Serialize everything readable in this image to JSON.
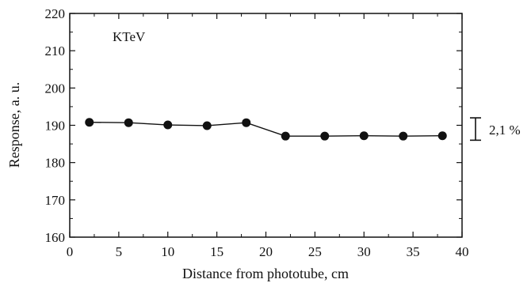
{
  "chart_data": {
    "type": "line",
    "title": "",
    "xlabel": "Distance from phototube, cm",
    "ylabel": "Response, a. u.",
    "xlim": [
      0,
      40
    ],
    "ylim": [
      160,
      220
    ],
    "x_ticks": [
      0,
      5,
      10,
      15,
      20,
      25,
      30,
      35,
      40
    ],
    "y_ticks": [
      160,
      170,
      180,
      190,
      200,
      210,
      220
    ],
    "x_tick_labels": [
      "0",
      "5",
      "10",
      "15",
      "20",
      "25",
      "30",
      "35",
      "40"
    ],
    "y_tick_labels": [
      "160",
      "170",
      "180",
      "190",
      "200",
      "210",
      "220"
    ],
    "grid": false,
    "legend": "none",
    "series": [
      {
        "x": [
          2,
          6,
          10,
          14,
          18,
          22,
          26,
          30,
          34,
          38
        ],
        "y": [
          190.8,
          190.7,
          190.1,
          189.9,
          190.7,
          187.1,
          187.1,
          187.2,
          187.1,
          187.2
        ],
        "marker": "filled-circle",
        "color": "#111111"
      }
    ],
    "annotations": [
      {
        "text": "KTeV",
        "kind": "label"
      },
      {
        "text": "2,1 %",
        "kind": "range-bracket",
        "y_range": [
          186,
          192
        ]
      }
    ]
  }
}
